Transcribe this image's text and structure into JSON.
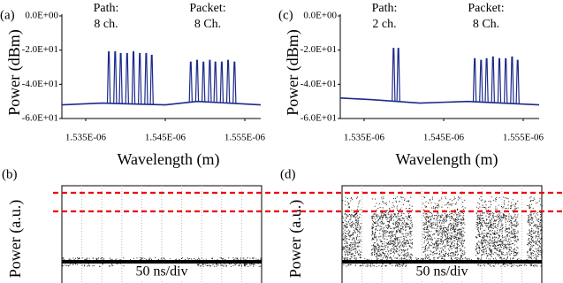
{
  "chart_data": [
    {
      "type": "spectrum",
      "label": "(a)",
      "ylabel": "Power (dBm)",
      "xlabel": "Wavelength (m)",
      "annotations": [
        [
          "Path:",
          "8 ch."
        ],
        [
          "Packet:",
          "8 Ch."
        ]
      ],
      "xlim": [
        1.532e-06,
        1.557e-06
      ],
      "ylim": [
        -60,
        0
      ],
      "xticks": [
        {
          "value": 1.535e-06,
          "label": "1.535E-06"
        },
        {
          "value": 1.545e-06,
          "label": "1.545E-06"
        },
        {
          "value": 1.555e-06,
          "label": "1.555E-06"
        }
      ],
      "yticks": [
        {
          "value": 0,
          "label": "0.0E+00"
        },
        {
          "value": -20,
          "label": "-2.0E+01"
        },
        {
          "value": -40,
          "label": "-4.0E+01"
        },
        {
          "value": -60,
          "label": "-6.0E+01"
        }
      ],
      "series": [
        {
          "style": "line",
          "color": "#1c2a8c",
          "x": [
            1.532e-06,
            1.537e-06,
            1.545e-06,
            1.549e-06,
            1.557e-06
          ],
          "values": [
            -52,
            -51,
            -52,
            -50,
            -52
          ]
        },
        {
          "style": "stem",
          "color": "#1c2a8c",
          "x": [
            1.5379e-06,
            1.5387e-06,
            1.5394e-06,
            1.5402e-06,
            1.541e-06,
            1.5418e-06,
            1.5426e-06,
            1.5433e-06,
            1.5482e-06,
            1.549e-06,
            1.5498e-06,
            1.5506e-06,
            1.5513e-06,
            1.5521e-06,
            1.5529e-06,
            1.5537e-06
          ],
          "values": [
            -21,
            -21,
            -22,
            -22,
            -21,
            -22,
            -22,
            -23,
            -27,
            -26,
            -27,
            -26,
            -27,
            -27,
            -26,
            -27
          ]
        }
      ]
    },
    {
      "type": "trace",
      "label": "(b)",
      "ylabel": "Power (a.u.)",
      "annotation": "50 ns/div",
      "grid": true
    },
    {
      "type": "spectrum",
      "label": "(c)",
      "ylabel": "Power (dBm)",
      "xlabel": "Wavelength (m)",
      "annotations": [
        [
          "Path:",
          "2 ch."
        ],
        [
          "Packet:",
          "8 Ch."
        ]
      ],
      "xlim": [
        1.532e-06,
        1.557e-06
      ],
      "ylim": [
        -60,
        0
      ],
      "xticks": [
        {
          "value": 1.535e-06,
          "label": "1.535E-06"
        },
        {
          "value": 1.545e-06,
          "label": "1.545E-06"
        },
        {
          "value": 1.555e-06,
          "label": "1.555E-06"
        }
      ],
      "yticks": [
        {
          "value": 0,
          "label": "0.0E+00"
        },
        {
          "value": -20,
          "label": "-2.0E+01"
        },
        {
          "value": -40,
          "label": "-4.0E+01"
        },
        {
          "value": -60,
          "label": "-6.0E+01"
        }
      ],
      "series": [
        {
          "style": "line",
          "color": "#1c2a8c",
          "x": [
            1.532e-06,
            1.536e-06,
            1.542e-06,
            1.548e-06,
            1.557e-06
          ],
          "values": [
            -48,
            -49,
            -51,
            -50,
            -52
          ]
        },
        {
          "style": "stem",
          "color": "#1c2a8c",
          "x": [
            1.5387e-06,
            1.5393e-06,
            1.5489e-06,
            1.5497e-06,
            1.5504e-06,
            1.5512e-06,
            1.552e-06,
            1.5528e-06,
            1.5536e-06,
            1.5543e-06
          ],
          "values": [
            -19,
            -19,
            -25,
            -26,
            -25,
            -24,
            -25,
            -25,
            -24,
            -26
          ]
        }
      ]
    },
    {
      "type": "trace",
      "label": "(d)",
      "ylabel": "Power (a.u.)",
      "annotation": "50 ns/div",
      "grid": true
    }
  ]
}
